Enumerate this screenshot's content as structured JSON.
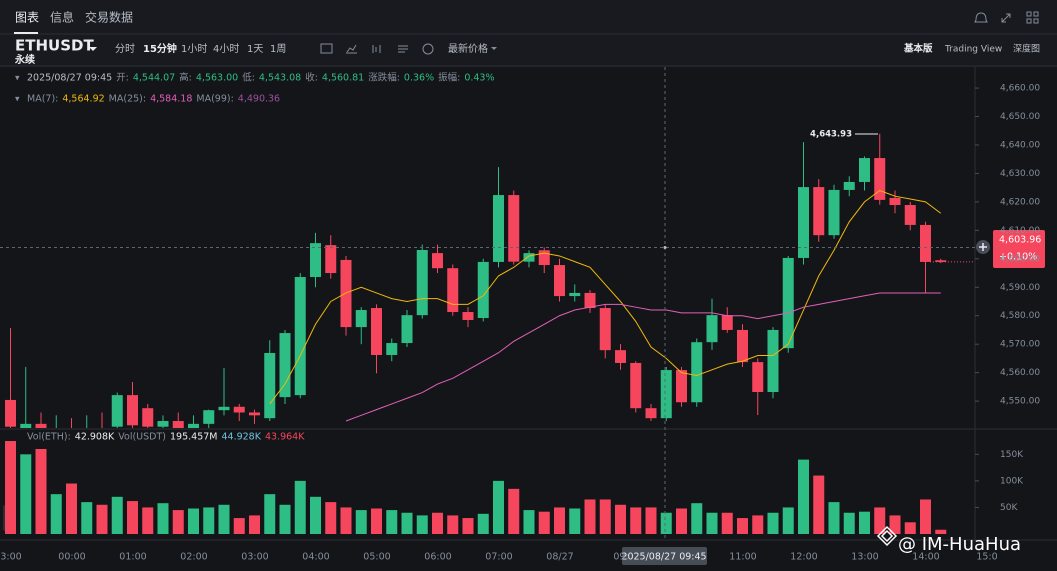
{
  "tabs": [
    "图表",
    "信息",
    "交易数据"
  ],
  "symbol": "ETHUSDT",
  "contract": "永续",
  "intervals": [
    "分时",
    "15分钟",
    "1小时",
    "4小时",
    "1天",
    "1周"
  ],
  "price_mode": "最新价格",
  "views": [
    "基本版",
    "Trading View",
    "深度图"
  ],
  "ohlc_info": {
    "time": "2025/08/27 09:45",
    "items": [
      {
        "label": "开:",
        "value": "4,544.07"
      },
      {
        "label": "高:",
        "value": "4,563.00"
      },
      {
        "label": "低:",
        "value": "4,543.08"
      },
      {
        "label": "收:",
        "value": "4,560.81"
      },
      {
        "label": "涨跌幅:",
        "value": "0.36%"
      },
      {
        "label": "振幅:",
        "value": "0.43%"
      }
    ]
  },
  "ma_info": [
    {
      "label": "MA(7):",
      "value": "4,564.92",
      "color": "#f0b90b"
    },
    {
      "label": "MA(25):",
      "value": "4,584.18",
      "color": "#e45fb8"
    },
    {
      "label": "MA(99):",
      "value": "4,490.36",
      "color": "#9b4fa0"
    }
  ],
  "volume_info": [
    {
      "text": "Vol(ETH):",
      "color": "#848e9c"
    },
    {
      "text": "42.908K",
      "color": "#eaecef"
    },
    {
      "text": "Vol(USDT)",
      "color": "#848e9c"
    },
    {
      "text": "195.457M",
      "color": "#eaecef"
    },
    {
      "text": "44.928K",
      "color": "#6fc3df"
    },
    {
      "text": "43.964K",
      "color": "#f6465d"
    }
  ],
  "chart_data": {
    "type": "candlestick",
    "up_color": "#2ebd85",
    "down_color": "#f6465d",
    "candles": [
      [
        4550.4,
        4575.7,
        4538,
        4541
      ],
      [
        4540,
        4562,
        4536,
        4542
      ],
      [
        4542,
        4546,
        4535,
        4538
      ],
      [
        4538,
        4545,
        4534,
        4540
      ],
      [
        4540,
        4544,
        4534,
        4536
      ],
      [
        4536,
        4545,
        4533,
        4540
      ],
      [
        4540,
        4546,
        4535,
        4539
      ],
      [
        4541,
        4553,
        4539,
        4552.1
      ],
      [
        4552.1,
        4556.7,
        4539,
        4541.5
      ],
      [
        4547.5,
        4549,
        4538,
        4541
      ],
      [
        4541,
        4545,
        4537,
        4543
      ],
      [
        4543,
        4546,
        4538,
        4540
      ],
      [
        4540,
        4545,
        4536,
        4542
      ],
      [
        4542,
        4547,
        4540,
        4546.8
      ],
      [
        4546.8,
        4561.6,
        4545,
        4548
      ],
      [
        4548,
        4549,
        4543,
        4546
      ],
      [
        4546,
        4547,
        4542,
        4545
      ],
      [
        4544,
        4571.4,
        4543,
        4566.9
      ],
      [
        4551.4,
        4575,
        4549,
        4573.9
      ],
      [
        4552.1,
        4595,
        4551,
        4593.6
      ],
      [
        4593.6,
        4609.1,
        4590,
        4605.5
      ],
      [
        4604.8,
        4608.3,
        4593,
        4595
      ],
      [
        4599.6,
        4601,
        4573,
        4576
      ],
      [
        4576,
        4583,
        4570,
        4582
      ],
      [
        4582.7,
        4584,
        4559.8,
        4566.2
      ],
      [
        4566.2,
        4572,
        4564,
        4570.4
      ],
      [
        4570.4,
        4582,
        4569,
        4580.2
      ],
      [
        4580.2,
        4605,
        4579,
        4603.1
      ],
      [
        4602,
        4605,
        4595,
        4596.7
      ],
      [
        4596.7,
        4598,
        4580,
        4581.3
      ],
      [
        4581.3,
        4583,
        4576,
        4578.5
      ],
      [
        4579.2,
        4600,
        4578,
        4598.9
      ],
      [
        4598.9,
        4632.2,
        4597,
        4622.4
      ],
      [
        4622.4,
        4624,
        4598,
        4599
      ],
      [
        4599,
        4603,
        4597,
        4602
      ],
      [
        4603,
        4604,
        4595,
        4597.8
      ],
      [
        4597.8,
        4600,
        4585,
        4586.9
      ],
      [
        4586.9,
        4591,
        4585,
        4588
      ],
      [
        4588,
        4589,
        4581,
        4582.7
      ],
      [
        4582.7,
        4584,
        4565,
        4567.9
      ],
      [
        4567.9,
        4570,
        4561,
        4563.4
      ],
      [
        4563.4,
        4564,
        4546,
        4547.5
      ],
      [
        4547.5,
        4549,
        4543,
        4544
      ],
      [
        4544,
        4562,
        4543,
        4560.9
      ],
      [
        4560.9,
        4562,
        4548,
        4549.6
      ],
      [
        4549.6,
        4572,
        4548,
        4570.7
      ],
      [
        4570.7,
        4586,
        4568,
        4580.2
      ],
      [
        4580.2,
        4583,
        4574,
        4575
      ],
      [
        4575,
        4577,
        4562,
        4563.7
      ],
      [
        4563.7,
        4565,
        4545.1,
        4553.2
      ],
      [
        4553.2,
        4576,
        4551,
        4575
      ],
      [
        4568.6,
        4601,
        4567,
        4600.3
      ],
      [
        4600.3,
        4641,
        4598,
        4625.2
      ],
      [
        4625.2,
        4628,
        4606,
        4608.3
      ],
      [
        4608.3,
        4626,
        4607,
        4624.2
      ],
      [
        4624.2,
        4629,
        4622,
        4627
      ],
      [
        4627,
        4636,
        4624,
        4635.4
      ],
      [
        4635.4,
        4643.93,
        4619,
        4620.7
      ],
      [
        4621.4,
        4624,
        4616,
        4618.9
      ],
      [
        4618.9,
        4620,
        4610,
        4611.9
      ],
      [
        4611.9,
        4613,
        4588,
        4598.9
      ],
      [
        4599.5,
        4600,
        4598.5,
        4598.9
      ]
    ],
    "ma": [
      {
        "name": "MA(7)",
        "color": "#f0b90b",
        "values": [
          null,
          null,
          null,
          null,
          null,
          null,
          null,
          null,
          null,
          null,
          null,
          null,
          null,
          null,
          null,
          null,
          null,
          4549,
          4556,
          4566,
          4577,
          4585,
          4588,
          4590,
          4588,
          4586,
          4585,
          4586,
          4586,
          4584,
          4584,
          4587,
          4594,
          4597,
          4601,
          4602,
          4601,
          4599,
          4597,
          4591,
          4585,
          4578,
          4569,
          4565,
          4560,
          4559,
          4561,
          4563,
          4564,
          4566,
          4566,
          4570,
          4582,
          4594,
          4603,
          4613,
          4620,
          4624,
          4622,
          4621,
          4620,
          4616
        ]
      },
      {
        "name": "MA(25)",
        "color": "#e45fb8",
        "values": [
          null,
          null,
          null,
          null,
          null,
          null,
          null,
          null,
          null,
          null,
          null,
          null,
          null,
          null,
          null,
          null,
          null,
          null,
          null,
          null,
          null,
          null,
          4543,
          4545,
          4547,
          4549,
          4551,
          4553,
          4556,
          4558,
          4561,
          4564,
          4567,
          4571,
          4574,
          4577,
          4580,
          4582,
          4583,
          4584,
          4584,
          4583,
          4582,
          4582,
          4581,
          4581,
          4581,
          4580,
          4580,
          4579,
          4580,
          4581,
          4583,
          4584,
          4585,
          4586,
          4587,
          4588,
          4588,
          4588,
          4588,
          4588
        ]
      }
    ],
    "high_label": "4,643.93",
    "last_price": {
      "value": 4603.96,
      "label": "4,603.96"
    },
    "change": "+0.10%",
    "ylim": [
      4541.6,
      4668.1
    ],
    "yticks": [
      {
        "value": 4550,
        "label": "4,550.00"
      },
      {
        "value": 4560,
        "label": "4,560.00"
      },
      {
        "value": 4570,
        "label": "4,570.00"
      },
      {
        "value": 4580,
        "label": "4,580.00"
      },
      {
        "value": 4590,
        "label": "4,590.00"
      },
      {
        "value": 4600,
        "label": "4,600.00"
      },
      {
        "value": 4610,
        "label": "4,610.00"
      },
      {
        "value": 4620,
        "label": "4,620.00"
      },
      {
        "value": 4630,
        "label": "4,630.00"
      },
      {
        "value": 4640,
        "label": "4,640.00"
      },
      {
        "value": 4650,
        "label": "4,650.00"
      },
      {
        "value": 4660,
        "label": "4,660.00"
      }
    ],
    "volumes": [
      175,
      150,
      160,
      75,
      95,
      60,
      55,
      70,
      62,
      50,
      58,
      45,
      48,
      50,
      55,
      30,
      35,
      75,
      55,
      100,
      70,
      60,
      50,
      45,
      48,
      45,
      40,
      35,
      40,
      35,
      30,
      38,
      100,
      85,
      45,
      42,
      50,
      48,
      65,
      65,
      55,
      50,
      50,
      40,
      48,
      58,
      40,
      40,
      30,
      35,
      40,
      50,
      140,
      110,
      60,
      40,
      42,
      50,
      35,
      22,
      65,
      8
    ],
    "vlim": [
      0,
      192
    ],
    "vticks": [
      {
        "value": 50,
        "label": "50K"
      },
      {
        "value": 100,
        "label": "100K"
      },
      {
        "value": 150,
        "label": "150K"
      }
    ],
    "time_labels": [
      "3:00",
      "00:00",
      "01:00",
      "02:00",
      "03:00",
      "04:00",
      "05:00",
      "06:00",
      "07:00",
      "08/27",
      "09:",
      "11:00",
      "12:00",
      "13:00",
      "14:00",
      "15:0"
    ]
  },
  "watermark": "@ IM-HuaHua"
}
